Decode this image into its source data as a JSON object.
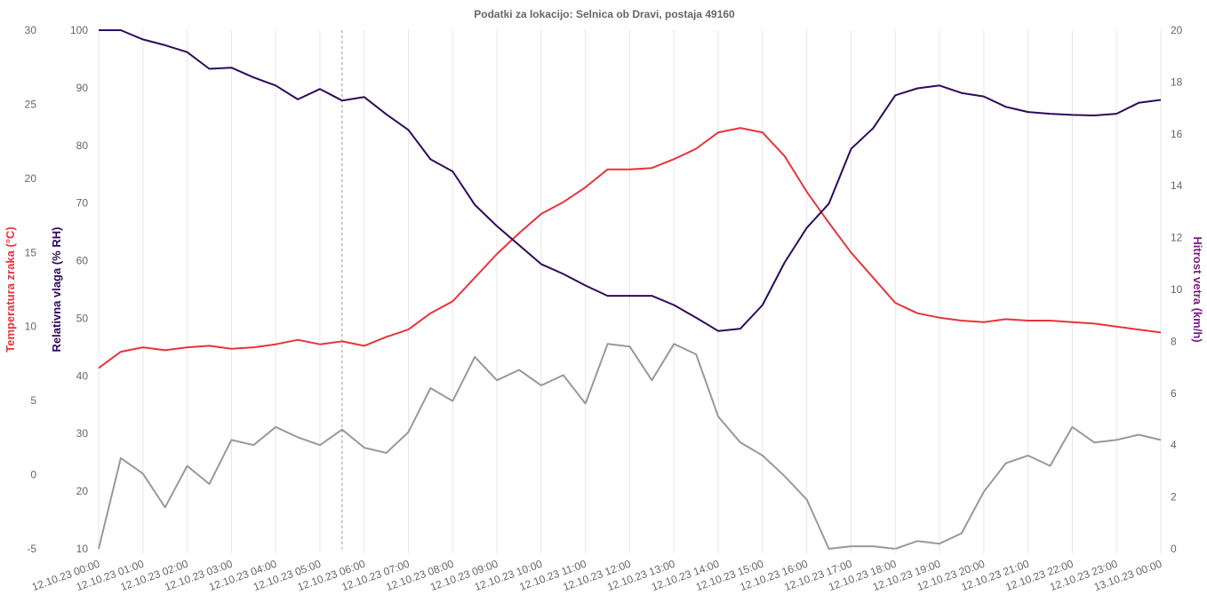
{
  "chart_data": {
    "type": "line",
    "title": "Podatki za lokacijo: Selnica ob Dravi, postaja 49160",
    "x": [
      "12.10.23 00:00",
      "12.10.23 00:30",
      "12.10.23 01:00",
      "12.10.23 01:30",
      "12.10.23 02:00",
      "12.10.23 02:30",
      "12.10.23 03:00",
      "12.10.23 03:30",
      "12.10.23 04:00",
      "12.10.23 04:30",
      "12.10.23 05:00",
      "12.10.23 05:30",
      "12.10.23 06:00",
      "12.10.23 06:30",
      "12.10.23 07:00",
      "12.10.23 07:30",
      "12.10.23 08:00",
      "12.10.23 08:30",
      "12.10.23 09:00",
      "12.10.23 09:30",
      "12.10.23 10:00",
      "12.10.23 10:30",
      "12.10.23 11:00",
      "12.10.23 11:30",
      "12.10.23 12:00",
      "12.10.23 12:30",
      "12.10.23 13:00",
      "12.10.23 13:30",
      "12.10.23 14:00",
      "12.10.23 14:30",
      "12.10.23 15:00",
      "12.10.23 15:30",
      "12.10.23 16:00",
      "12.10.23 16:30",
      "12.10.23 17:00",
      "12.10.23 17:30",
      "12.10.23 18:00",
      "12.10.23 18:30",
      "12.10.23 19:00",
      "12.10.23 19:30",
      "12.10.23 20:00",
      "12.10.23 20:30",
      "12.10.23 21:00",
      "12.10.23 21:30",
      "12.10.23 22:00",
      "12.10.23 22:30",
      "12.10.23 23:00",
      "12.10.23 23:30",
      "13.10.23 00:00"
    ],
    "x_tick_labels": [
      "12.10.23 00:00",
      "12.10.23 01:00",
      "12.10.23 02:00",
      "12.10.23 03:00",
      "12.10.23 04:00",
      "12.10.23 05:00",
      "12.10.23 06:00",
      "12.10.23 07:00",
      "12.10.23 08:00",
      "12.10.23 09:00",
      "12.10.23 10:00",
      "12.10.23 11:00",
      "12.10.23 12:00",
      "12.10.23 13:00",
      "12.10.23 14:00",
      "12.10.23 15:00",
      "12.10.23 16:00",
      "12.10.23 17:00",
      "12.10.23 18:00",
      "12.10.23 19:00",
      "12.10.23 20:00",
      "12.10.23 21:00",
      "12.10.23 22:00",
      "12.10.23 23:00",
      "13.10.23 00:00"
    ],
    "axes": [
      {
        "id": "temp",
        "label": "Temperatura zraka (°C)",
        "color": "#e8333c",
        "ylim": [
          -5,
          30
        ],
        "ticks": [
          -5,
          0,
          5,
          10,
          15,
          20,
          25,
          30
        ]
      },
      {
        "id": "hum",
        "label": "Relativna vlaga (% RH)",
        "color": "#2e0a5c",
        "ylim": [
          10,
          100
        ],
        "ticks": [
          10,
          20,
          30,
          40,
          50,
          60,
          70,
          80,
          90,
          100
        ]
      },
      {
        "id": "wind",
        "label": "Hitrost vetra (km/h)",
        "color": "#7a2080",
        "ylim": [
          0,
          20
        ],
        "ticks": [
          0,
          2,
          4,
          6,
          8,
          10,
          12,
          14,
          16,
          18,
          20
        ]
      }
    ],
    "series": [
      {
        "axis": "temp",
        "color": "#e8333c",
        "values": [
          7.2,
          8.3,
          8.6,
          8.4,
          8.6,
          8.7,
          8.5,
          8.6,
          8.8,
          9.1,
          8.8,
          9.0,
          8.7,
          9.3,
          9.8,
          10.9,
          11.7,
          13.3,
          14.9,
          16.3,
          17.6,
          18.4,
          19.4,
          20.6,
          20.6,
          20.7,
          21.3,
          22.0,
          23.1,
          23.4,
          23.1,
          21.5,
          19.1,
          17.0,
          15.0,
          13.3,
          11.6,
          10.9,
          10.6,
          10.4,
          10.3,
          10.5,
          10.4,
          10.4,
          10.3,
          10.2,
          10.0,
          9.8,
          9.6
        ]
      },
      {
        "axis": "hum",
        "color": "#2e0a5c",
        "values": [
          100,
          100,
          98.4,
          97.4,
          96.2,
          93.3,
          93.5,
          91.8,
          90.4,
          88.0,
          89.8,
          87.8,
          88.4,
          85.4,
          82.7,
          77.6,
          75.5,
          69.7,
          66.0,
          62.7,
          59.4,
          57.7,
          55.7,
          53.9,
          53.9,
          53.9,
          52.3,
          50.1,
          47.8,
          48.2,
          52.3,
          59.7,
          65.7,
          69.9,
          79.4,
          83.0,
          88.7,
          89.9,
          90.4,
          89.1,
          88.5,
          86.7,
          85.8,
          85.5,
          85.3,
          85.2,
          85.5,
          87.4,
          87.9
        ]
      },
      {
        "axis": "wind",
        "color": "#999999",
        "values": [
          0,
          3.5,
          2.9,
          1.6,
          3.2,
          2.5,
          4.2,
          4.0,
          4.7,
          4.3,
          4.0,
          4.6,
          3.9,
          3.7,
          4.5,
          6.2,
          5.7,
          7.4,
          6.5,
          6.9,
          6.3,
          6.7,
          5.6,
          7.9,
          7.8,
          6.5,
          7.9,
          7.5,
          5.1,
          4.1,
          3.6,
          2.8,
          1.9,
          0,
          0.1,
          0.1,
          0,
          0.3,
          0.2,
          0.6,
          2.2,
          3.3,
          3.6,
          3.2,
          4.7,
          4.1,
          4.2,
          4.4,
          4.2
        ]
      }
    ],
    "cursor_x": "12.10.23 05:30",
    "grid": true,
    "legend": "none"
  }
}
